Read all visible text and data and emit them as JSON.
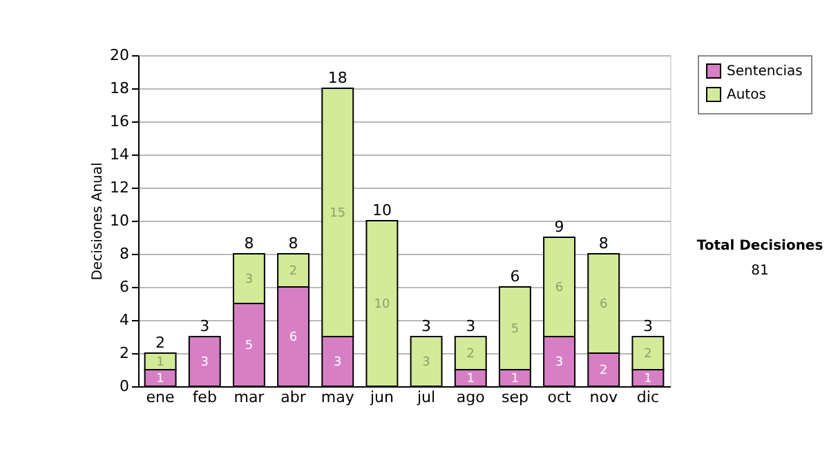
{
  "chart_data": {
    "type": "bar",
    "stacked": true,
    "ylabel": "Decisiones Anual",
    "categories": [
      "ene",
      "feb",
      "mar",
      "abr",
      "may",
      "jun",
      "jul",
      "ago",
      "sep",
      "oct",
      "nov",
      "dic"
    ],
    "series": [
      {
        "name": "Sentencias",
        "color": "#d67fc4",
        "values": [
          1,
          3,
          5,
          6,
          3,
          0,
          0,
          1,
          1,
          3,
          2,
          1
        ],
        "value_labels": [
          "1",
          "3",
          "5",
          "6",
          "3",
          null,
          null,
          "1",
          "1",
          "3",
          "2",
          "1"
        ]
      },
      {
        "name": "Autos",
        "color": "#d3ea98",
        "values": [
          1,
          0,
          3,
          2,
          15,
          10,
          3,
          2,
          5,
          6,
          6,
          2
        ],
        "value_labels": [
          "1",
          null,
          "3",
          "2",
          "15",
          "10",
          "3",
          "2",
          "5",
          "6",
          "6",
          "2"
        ]
      }
    ],
    "ylim": [
      0,
      20
    ],
    "yticks": [
      0,
      2,
      4,
      6,
      8,
      10,
      12,
      14,
      16,
      18,
      20
    ],
    "grid": "y",
    "legend": "right",
    "totals": [
      "2",
      "3",
      "8",
      "8",
      "18",
      "10",
      "3",
      "3",
      "6",
      "9",
      "8",
      "3"
    ],
    "annotations": [
      "Total Decisiones",
      "81"
    ]
  }
}
